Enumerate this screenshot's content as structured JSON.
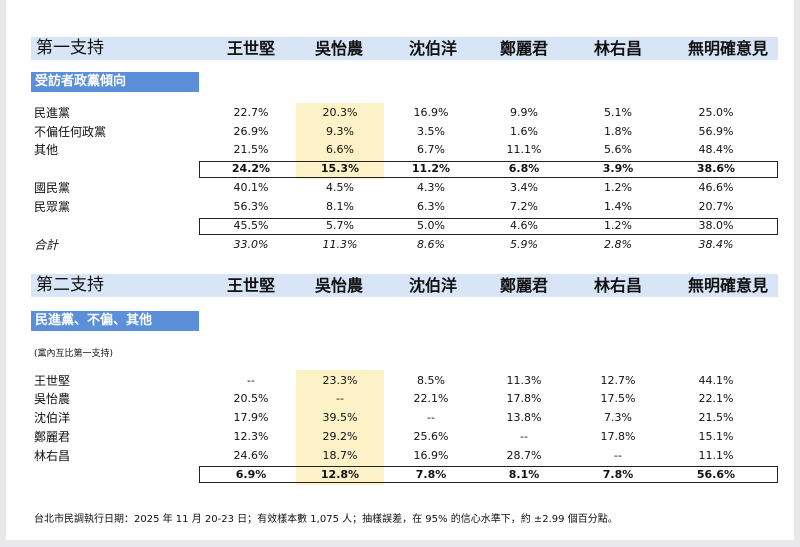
{
  "columns": [
    "王世堅",
    "吳怡農",
    "沈伯洋",
    "鄭麗君",
    "林右昌",
    "無明確意見"
  ],
  "colors": {
    "header_band": "#d7e5f6",
    "section_label": "#5b8fda",
    "highlight": "#fdf1c8"
  },
  "table1": {
    "title": "第一支持",
    "section": "受訪者政黨傾向",
    "rows": [
      {
        "label": "民進黨",
        "values": [
          "22.7%",
          "20.3%",
          "16.9%",
          "9.9%",
          "5.1%",
          "25.0%"
        ]
      },
      {
        "label": "不偏任何政黨",
        "values": [
          "26.9%",
          "9.3%",
          "3.5%",
          "1.6%",
          "1.8%",
          "56.9%"
        ]
      },
      {
        "label": "其他",
        "values": [
          "21.5%",
          "6.6%",
          "6.7%",
          "11.1%",
          "5.6%",
          "48.4%"
        ]
      },
      {
        "label": "",
        "values": [
          "24.2%",
          "15.3%",
          "11.2%",
          "6.8%",
          "3.9%",
          "38.6%"
        ]
      },
      {
        "label": "國民黨",
        "values": [
          "40.1%",
          "4.5%",
          "4.3%",
          "3.4%",
          "1.2%",
          "46.6%"
        ]
      },
      {
        "label": "民眾黨",
        "values": [
          "56.3%",
          "8.1%",
          "6.3%",
          "7.2%",
          "1.4%",
          "20.7%"
        ]
      },
      {
        "label": "",
        "values": [
          "45.5%",
          "5.7%",
          "5.0%",
          "4.6%",
          "1.2%",
          "38.0%"
        ]
      },
      {
        "label": "合計",
        "values": [
          "33.0%",
          "11.3%",
          "8.6%",
          "5.9%",
          "2.8%",
          "38.4%"
        ]
      }
    ]
  },
  "table2": {
    "title": "第二支持",
    "section": "民進黨、不偏、其他",
    "note": "(黨內互比第一支持)",
    "rows": [
      {
        "label": "王世堅",
        "values": [
          "--",
          "23.3%",
          "8.5%",
          "11.3%",
          "12.7%",
          "44.1%"
        ]
      },
      {
        "label": "吳怡農",
        "values": [
          "20.5%",
          "--",
          "22.1%",
          "17.8%",
          "17.5%",
          "22.1%"
        ]
      },
      {
        "label": "沈伯洋",
        "values": [
          "17.9%",
          "39.5%",
          "--",
          "13.8%",
          "7.3%",
          "21.5%"
        ]
      },
      {
        "label": "鄭麗君",
        "values": [
          "12.3%",
          "29.2%",
          "25.6%",
          "--",
          "17.8%",
          "15.1%"
        ]
      },
      {
        "label": "林右昌",
        "values": [
          "24.6%",
          "18.7%",
          "16.9%",
          "28.7%",
          "--",
          "11.1%"
        ]
      },
      {
        "label": "",
        "values": [
          "6.9%",
          "12.8%",
          "7.8%",
          "8.1%",
          "7.8%",
          "56.6%"
        ]
      }
    ]
  },
  "footer": "台北市民調執行日期：2025 年 11 月 20-23 日；有效樣本數 1,075 人；抽樣誤差，在 95% 的信心水準下，約 ±2.99 個百分點。"
}
